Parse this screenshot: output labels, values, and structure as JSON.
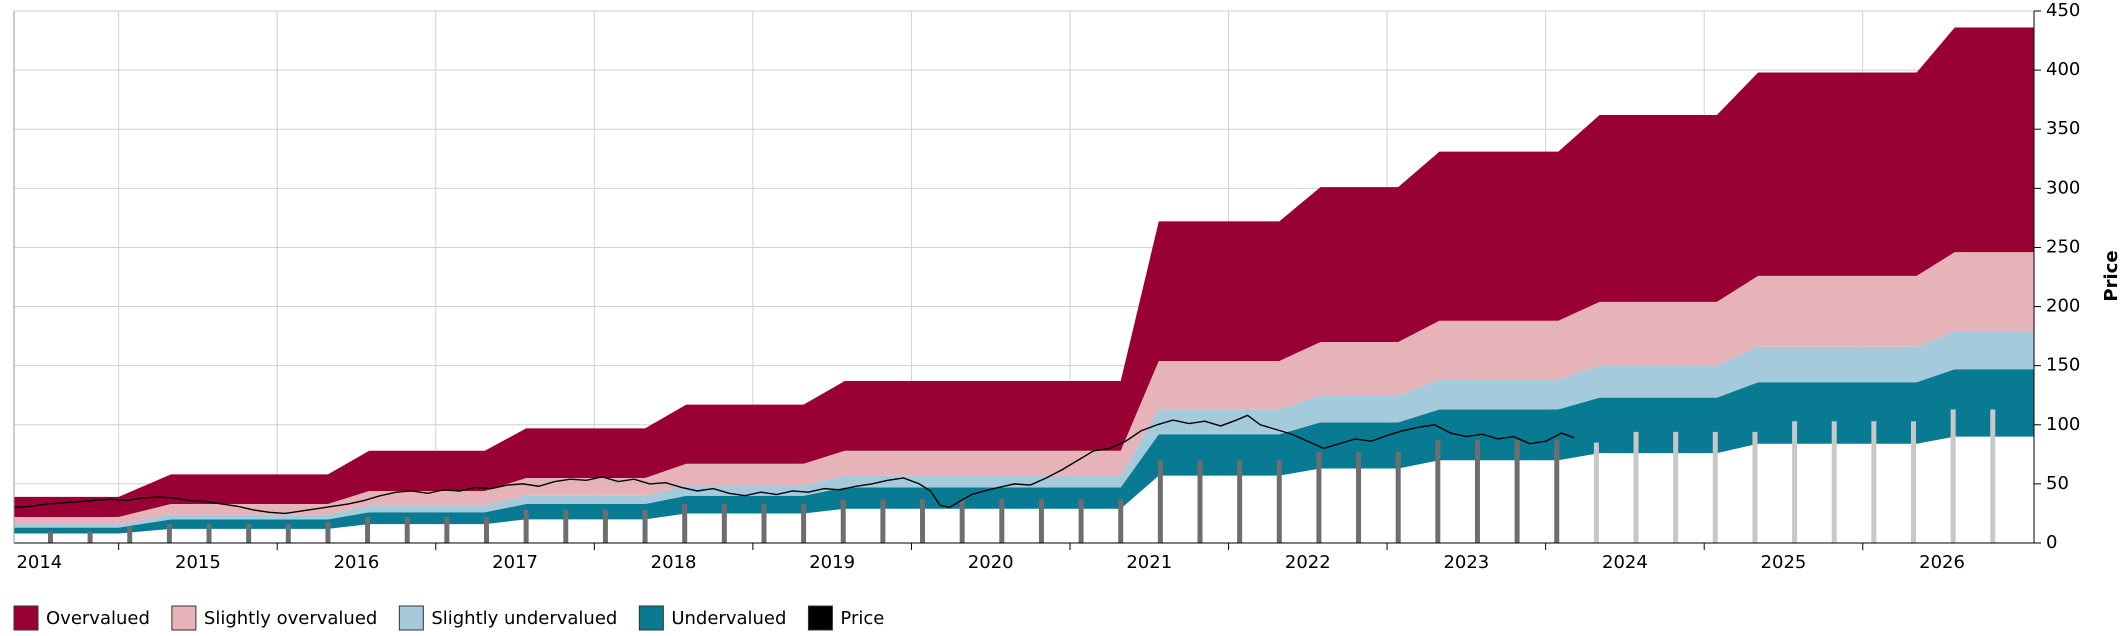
{
  "chart_data": {
    "type": "area",
    "y_axis_label": "Price",
    "xlim": [
      2014.34,
      2027.08
    ],
    "xticks": [
      2015,
      2016,
      2017,
      2018,
      2019,
      2020,
      2021,
      2022,
      2023,
      2024,
      2025,
      2026
    ],
    "year_labels": [
      {
        "value": 2014.5,
        "label": "2014"
      },
      {
        "value": 2015.5,
        "label": "2015"
      },
      {
        "value": 2016.5,
        "label": "2016"
      },
      {
        "value": 2017.5,
        "label": "2017"
      },
      {
        "value": 2018.5,
        "label": "2018"
      },
      {
        "value": 2019.5,
        "label": "2019"
      },
      {
        "value": 2020.5,
        "label": "2020"
      },
      {
        "value": 2021.5,
        "label": "2021"
      },
      {
        "value": 2022.5,
        "label": "2022"
      },
      {
        "value": 2023.5,
        "label": "2023"
      },
      {
        "value": 2024.5,
        "label": "2024"
      },
      {
        "value": 2025.5,
        "label": "2025"
      },
      {
        "value": 2026.5,
        "label": "2026"
      }
    ],
    "ylim": [
      0,
      450
    ],
    "yticks": [
      0,
      50,
      100,
      150,
      200,
      250,
      300,
      350,
      400,
      450
    ],
    "grid": true,
    "x": [
      2014.34,
      2015.0,
      2015.33,
      2016.32,
      2016.58,
      2017.31,
      2017.57,
      2018.32,
      2018.58,
      2019.32,
      2019.58,
      2021.32,
      2021.56,
      2022.32,
      2022.58,
      2023.07,
      2023.33,
      2024.08,
      2024.34,
      2025.08,
      2025.34,
      2026.34,
      2026.58,
      2027.08
    ],
    "base": {
      "color": "#ffffff",
      "values": [
        8,
        8,
        12,
        12,
        16,
        16,
        20,
        20,
        25,
        25,
        29,
        29,
        57,
        57,
        63,
        63,
        70,
        70,
        76,
        76,
        84,
        84,
        90,
        90
      ]
    },
    "series": [
      {
        "name": "Undervalued",
        "color": "#087b93",
        "values": [
          5,
          5,
          8,
          8,
          10,
          10,
          13,
          13,
          15,
          15,
          18,
          18,
          35,
          35,
          39,
          39,
          43,
          43,
          47,
          47,
          52,
          52,
          57,
          57
        ]
      },
      {
        "name": "Slightly undervalued",
        "color": "#a5cadc",
        "values": [
          3,
          3,
          4,
          4,
          6,
          6,
          7,
          7,
          9,
          9,
          10,
          10,
          21,
          21,
          23,
          23,
          25,
          25,
          27,
          27,
          30,
          30,
          32,
          32
        ]
      },
      {
        "name": "Slightly overvalued",
        "color": "#e6b4b8",
        "values": [
          6,
          6,
          9,
          9,
          12,
          12,
          15,
          15,
          18,
          18,
          21,
          21,
          41,
          41,
          45,
          45,
          50,
          50,
          54,
          54,
          60,
          60,
          67,
          67
        ]
      },
      {
        "name": "Overvalued",
        "color": "#990033",
        "values": [
          17,
          17,
          25,
          25,
          34,
          34,
          42,
          42,
          50,
          50,
          59,
          59,
          118,
          118,
          131,
          131,
          143,
          143,
          158,
          158,
          172,
          172,
          190,
          190
        ]
      }
    ],
    "legend_order": [
      3,
      2,
      1,
      0
    ],
    "bars": {
      "x": [
        2014.57,
        2014.82,
        2015.07,
        2015.32,
        2015.57,
        2015.82,
        2016.07,
        2016.32,
        2016.57,
        2016.82,
        2017.07,
        2017.32,
        2017.57,
        2017.82,
        2018.07,
        2018.32,
        2018.57,
        2018.82,
        2019.07,
        2019.32,
        2019.57,
        2019.82,
        2020.07,
        2020.32,
        2020.57,
        2020.82,
        2021.07,
        2021.32,
        2021.57,
        2021.82,
        2022.07,
        2022.32,
        2022.57,
        2022.82,
        2023.07,
        2023.32,
        2023.57,
        2023.82,
        2024.07,
        2024.32,
        2024.57,
        2024.82,
        2025.07,
        2025.32,
        2025.57,
        2025.82,
        2026.07,
        2026.32,
        2026.57,
        2026.82
      ],
      "values": [
        10,
        10,
        14,
        16,
        16,
        16,
        16,
        18,
        22,
        22,
        22,
        22,
        28,
        28,
        28,
        28,
        33,
        33,
        33,
        33,
        37,
        37,
        37,
        37,
        37,
        37,
        37,
        37,
        70,
        70,
        70,
        70,
        77,
        77,
        77,
        87,
        87,
        87,
        87,
        85,
        94,
        94,
        94,
        94,
        103,
        103,
        103,
        103,
        113,
        113
      ],
      "colors": [
        "#6e6e6e",
        "#6e6e6e",
        "#6e6e6e",
        "#6e6e6e",
        "#6e6e6e",
        "#6e6e6e",
        "#6e6e6e",
        "#6e6e6e",
        "#6e6e6e",
        "#6e6e6e",
        "#6e6e6e",
        "#6e6e6e",
        "#6e6e6e",
        "#6e6e6e",
        "#6e6e6e",
        "#6e6e6e",
        "#6e6e6e",
        "#6e6e6e",
        "#6e6e6e",
        "#6e6e6e",
        "#6e6e6e",
        "#6e6e6e",
        "#6e6e6e",
        "#6e6e6e",
        "#6e6e6e",
        "#6e6e6e",
        "#6e6e6e",
        "#6e6e6e",
        "#6e6e6e",
        "#6e6e6e",
        "#6e6e6e",
        "#6e6e6e",
        "#6e6e6e",
        "#6e6e6e",
        "#6e6e6e",
        "#6e6e6e",
        "#6e6e6e",
        "#6e6e6e",
        "#6e6e6e",
        "#c8c8c8",
        "#c8c8c8",
        "#c8c8c8",
        "#c8c8c8",
        "#c8c8c8",
        "#c8c8c8",
        "#c8c8c8",
        "#c8c8c8",
        "#c8c8c8",
        "#c8c8c8",
        "#c8c8c8"
      ]
    },
    "price": {
      "name": "Price",
      "color": "#000000",
      "x": [
        2014.34,
        2014.45,
        2014.55,
        2014.65,
        2014.75,
        2014.85,
        2014.95,
        2015.05,
        2015.15,
        2015.25,
        2015.35,
        2015.45,
        2015.55,
        2015.65,
        2015.75,
        2015.85,
        2015.95,
        2016.05,
        2016.15,
        2016.25,
        2016.35,
        2016.45,
        2016.55,
        2016.65,
        2016.75,
        2016.85,
        2016.95,
        2017.05,
        2017.15,
        2017.25,
        2017.35,
        2017.45,
        2017.55,
        2017.65,
        2017.75,
        2017.85,
        2017.95,
        2018.05,
        2018.15,
        2018.25,
        2018.35,
        2018.45,
        2018.55,
        2018.65,
        2018.75,
        2018.85,
        2018.95,
        2019.05,
        2019.15,
        2019.25,
        2019.35,
        2019.45,
        2019.55,
        2019.65,
        2019.75,
        2019.85,
        2019.95,
        2020.05,
        2020.12,
        2020.18,
        2020.24,
        2020.3,
        2020.38,
        2020.46,
        2020.55,
        2020.65,
        2020.75,
        2020.85,
        2020.95,
        2021.05,
        2021.15,
        2021.25,
        2021.35,
        2021.45,
        2021.55,
        2021.65,
        2021.75,
        2021.85,
        2021.95,
        2022.05,
        2022.12,
        2022.2,
        2022.3,
        2022.4,
        2022.5,
        2022.6,
        2022.7,
        2022.8,
        2022.9,
        2023.0,
        2023.1,
        2023.2,
        2023.3,
        2023.4,
        2023.5,
        2023.6,
        2023.7,
        2023.8,
        2023.9,
        2024.0,
        2024.1,
        2024.18
      ],
      "values": [
        30,
        31,
        33,
        34,
        35,
        36,
        37,
        36,
        38,
        39,
        38,
        36,
        35,
        33,
        31,
        28,
        26,
        25,
        27,
        29,
        31,
        33,
        36,
        40,
        43,
        44,
        42,
        45,
        44,
        47,
        46,
        49,
        50,
        48,
        52,
        54,
        53,
        56,
        52,
        54,
        50,
        51,
        47,
        44,
        46,
        42,
        40,
        43,
        41,
        44,
        43,
        46,
        45,
        48,
        50,
        53,
        55,
        50,
        44,
        32,
        30,
        35,
        41,
        44,
        47,
        50,
        49,
        55,
        62,
        70,
        78,
        80,
        86,
        95,
        100,
        104,
        101,
        103,
        99,
        104,
        108,
        100,
        96,
        92,
        86,
        80,
        84,
        88,
        86,
        91,
        95,
        98,
        100,
        93,
        90,
        92,
        88,
        90,
        84,
        86,
        93,
        89
      ]
    }
  }
}
